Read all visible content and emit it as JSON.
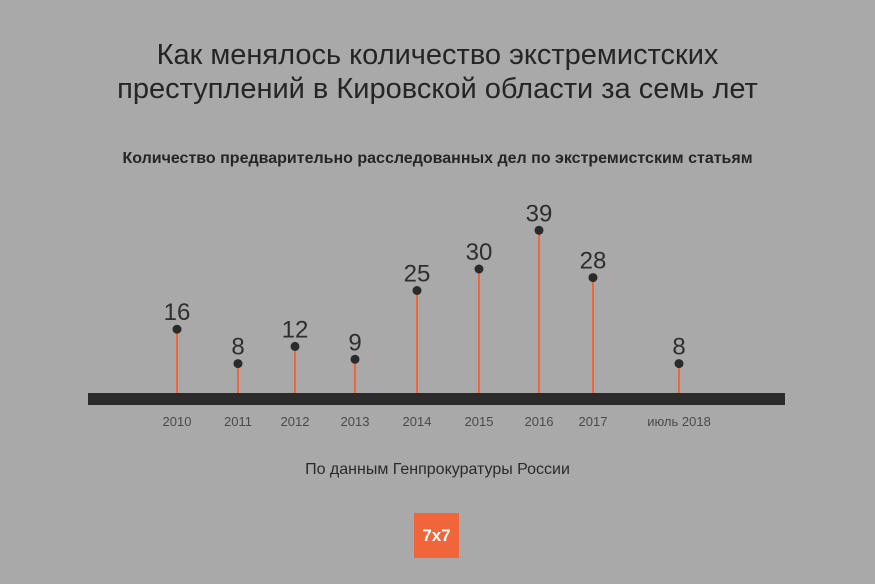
{
  "title_lines": [
    "Как менялось количество экстремистских",
    "преступлений в Кировской области за семь лет"
  ],
  "source": "По данным Генпрокуратуры России",
  "logo_text": "7x7",
  "colors": {
    "background": "#a9a9a9",
    "stem": "#f0663a",
    "baseline": "#2b2b2b",
    "dot": "#2b2b2b",
    "logo": "#f0663a"
  },
  "chart_data": {
    "type": "lollipop",
    "title": "Количество предварительно расследованных дел по экстремистским статьям",
    "categories": [
      "2010",
      "2011",
      "2012",
      "2013",
      "2014",
      "2015",
      "2016",
      "2017",
      "июль 2018"
    ],
    "values": [
      16,
      8,
      12,
      9,
      25,
      30,
      39,
      28,
      8
    ],
    "xlabel": "",
    "ylabel": "",
    "ylim": [
      0,
      43
    ],
    "grid": false,
    "legend": "none"
  }
}
